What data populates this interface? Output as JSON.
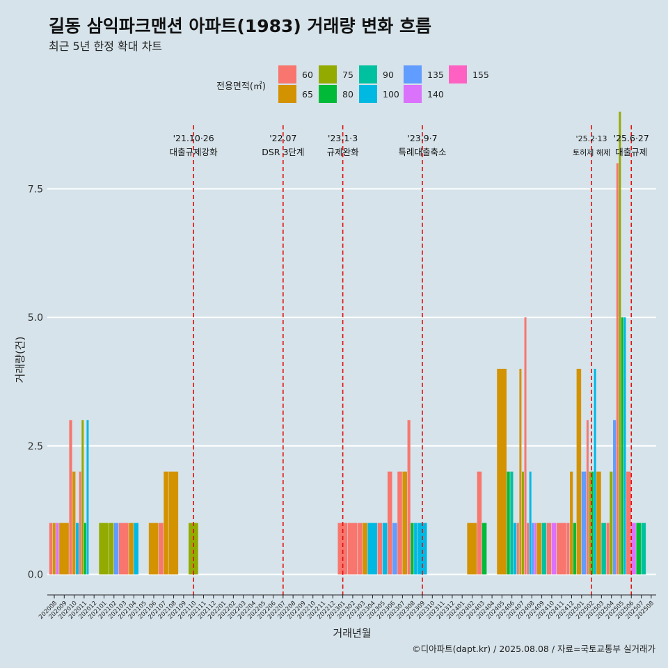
{
  "title": "길동 삼익파크맨션 아파트(1983) 거래량 변화 흐름",
  "subtitle": "최근 5년 한정 확대 차트",
  "footer": "©디아파트(dapt.kr) / 2025.08.08 / 자료=국토교통부 실거래가",
  "chart_data": {
    "type": "bar",
    "xlabel": "거래년월",
    "ylabel": "거래량(건)",
    "ylim": [
      -0.4,
      8.9
    ],
    "yticks": [
      0,
      2.5,
      5,
      7.5
    ],
    "ytick_labels": [
      "0.0",
      "2.5",
      "5.0",
      "7.5"
    ],
    "grid": true,
    "legend_title": "전용면적(㎡)",
    "legend_position": "top",
    "series_colors": {
      "60": "#F8766D",
      "65": "#D39200",
      "75": "#93AA00",
      "80": "#00BA38",
      "90": "#00C19F",
      "100": "#00B9E3",
      "135": "#619CFF",
      "140": "#DB72FB",
      "155": "#FF61C3"
    },
    "legend_order": [
      "60",
      "65",
      "75",
      "80",
      "90",
      "100",
      "135",
      "140",
      "155"
    ],
    "categories": [
      "202008",
      "202009",
      "202010",
      "202011",
      "202012",
      "202101",
      "202102",
      "202103",
      "202104",
      "202105",
      "202106",
      "202107",
      "202108",
      "202109",
      "202110",
      "202111",
      "202112",
      "202201",
      "202202",
      "202203",
      "202204",
      "202205",
      "202206",
      "202207",
      "202208",
      "202209",
      "202210",
      "202211",
      "202212",
      "202301",
      "202302",
      "202303",
      "202304",
      "202305",
      "202306",
      "202307",
      "202308",
      "202309",
      "202310",
      "202311",
      "202312",
      "202401",
      "202402",
      "202403",
      "202404",
      "202405",
      "202406",
      "202407",
      "202408",
      "202409",
      "202410",
      "202411",
      "202412",
      "202501",
      "202502",
      "202503",
      "202504",
      "202505",
      "202506",
      "202507",
      "202508"
    ],
    "data": {
      "202008": {
        "60": 1,
        "65": 1,
        "140": 1
      },
      "202009": {
        "65": 1
      },
      "202010": {
        "60": 3,
        "65": 2,
        "100": 1
      },
      "202011": {
        "60": 2,
        "75": 3,
        "80": 1,
        "100": 3
      },
      "202101": {
        "75": 1
      },
      "202102": {
        "75": 1,
        "135": 1
      },
      "202103": {
        "60": 1
      },
      "202104": {
        "65": 1,
        "100": 1
      },
      "202106": {
        "65": 1
      },
      "202107": {
        "60": 1,
        "65": 2
      },
      "202108": {
        "65": 2
      },
      "202110": {
        "75": 1
      },
      "202301": {
        "60": 1
      },
      "202302": {
        "60": 1
      },
      "202303": {
        "60": 1,
        "65": 1
      },
      "202304": {
        "100": 1
      },
      "202305": {
        "60": 1,
        "100": 1
      },
      "202306": {
        "60": 2,
        "135": 1
      },
      "202307": {
        "60": 2,
        "65": 2
      },
      "202308": {
        "60": 3,
        "80": 1,
        "100": 1
      },
      "202309": {
        "100": 1
      },
      "202402": {
        "65": 1
      },
      "202403": {
        "60": 2,
        "80": 1
      },
      "202405": {
        "65": 4
      },
      "202406": {
        "80": 2,
        "90": 2,
        "100": 1
      },
      "202407": {
        "60": 1,
        "65": 4,
        "60b": 5,
        "75": 2
      },
      "202408": {
        "60": 1,
        "135": 1,
        "140": 1,
        "100": 2
      },
      "202409": {
        "65": 1,
        "90": 1
      },
      "202410": {
        "60": 1,
        "140": 1
      },
      "202411": {
        "60": 1
      },
      "202412": {
        "60": 1,
        "65": 2,
        "80": 1
      },
      "202501": {
        "65": 4,
        "135": 2
      },
      "202502": {
        "80": 2,
        "60": 3,
        "100": 4,
        "75": 2
      },
      "202503": {
        "90": 1,
        "65": 2
      },
      "202504": {
        "60": 1,
        "75": 2,
        "135": 3
      },
      "202505": {
        "60": 8,
        "75": 9,
        "80": 5,
        "100": 5
      },
      "202506": {
        "140": 1,
        "60": 2
      },
      "202507": {
        "80": 1,
        "90": 1
      }
    },
    "events": [
      {
        "month": "202110",
        "label_top": "'21.10·26",
        "label_bottom": "대출규제강화"
      },
      {
        "month": "202207",
        "label_top": "'22.07",
        "label_bottom": "DSR 3단계"
      },
      {
        "month": "202301",
        "label_top": "'23.1·3",
        "label_bottom": "규제완화"
      },
      {
        "month": "202309",
        "label_top": "'23.9·7",
        "label_bottom": "특례대출축소"
      },
      {
        "month": "202502",
        "label_top": "'25.2·13",
        "label_bottom": "토허제 해제"
      },
      {
        "month": "202506",
        "label_top": "'25.6·27",
        "label_bottom": "대출규제"
      }
    ]
  }
}
